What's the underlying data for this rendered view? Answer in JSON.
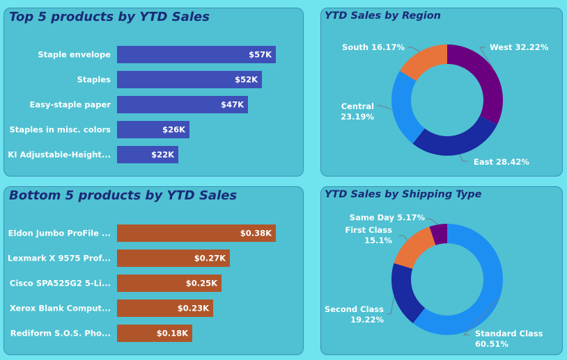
{
  "chart_data": [
    {
      "id": "top5",
      "type": "bar",
      "orientation": "horizontal",
      "title": "Top 5 products by YTD Sales",
      "categories": [
        "Staple envelope",
        "Staples",
        "Easy-staple paper",
        "Staples in misc. colors",
        "KI Adjustable-Height..."
      ],
      "values": [
        57,
        52,
        47,
        26,
        22
      ],
      "value_labels": [
        "$57K",
        "$52K",
        "$47K",
        "$26K",
        "$22K"
      ],
      "unit": "K",
      "xlim": [
        0,
        60
      ],
      "bar_color": "#3f4fb8",
      "grid": false
    },
    {
      "id": "bottom5",
      "type": "bar",
      "orientation": "horizontal",
      "title": "Bottom 5 products by YTD Sales",
      "categories": [
        "Eldon Jumbo ProFile ...",
        "Lexmark X 9575 Prof...",
        "Cisco SPA525G2 5-Li...",
        "Xerox Blank Comput...",
        "Rediform S.O.S. Pho..."
      ],
      "values": [
        0.38,
        0.27,
        0.25,
        0.23,
        0.18
      ],
      "value_labels": [
        "$0.38K",
        "$0.27K",
        "$0.25K",
        "$0.23K",
        "$0.18K"
      ],
      "unit": "K",
      "xlim": [
        0,
        0.4
      ],
      "bar_color": "#b0552a",
      "grid": false
    },
    {
      "id": "region",
      "type": "pie",
      "donut": true,
      "title": "YTD Sales by Region",
      "slices": [
        {
          "label": "West",
          "value": 32.22,
          "text": "32.22%",
          "color": "#6a0080"
        },
        {
          "label": "East",
          "value": 28.42,
          "text": "28.42%",
          "color": "#1a2aa0"
        },
        {
          "label": "Central",
          "value": 23.19,
          "text": "23.19%",
          "color": "#1e8ff2"
        },
        {
          "label": "South",
          "value": 16.17,
          "text": "16.17%",
          "color": "#e8743b"
        }
      ]
    },
    {
      "id": "shipping",
      "type": "pie",
      "donut": true,
      "title": "YTD Sales by Shipping Type",
      "slices": [
        {
          "label": "Standard Class",
          "value": 60.51,
          "text": "60.51%",
          "color": "#1e8ff2"
        },
        {
          "label": "Second Class",
          "value": 19.22,
          "text": "19.22%",
          "color": "#1a2aa0"
        },
        {
          "label": "First Class",
          "value": 15.1,
          "text": "15.1%",
          "color": "#e8743b"
        },
        {
          "label": "Same Day",
          "value": 5.17,
          "text": "5.17%",
          "color": "#6a0080"
        }
      ]
    }
  ]
}
